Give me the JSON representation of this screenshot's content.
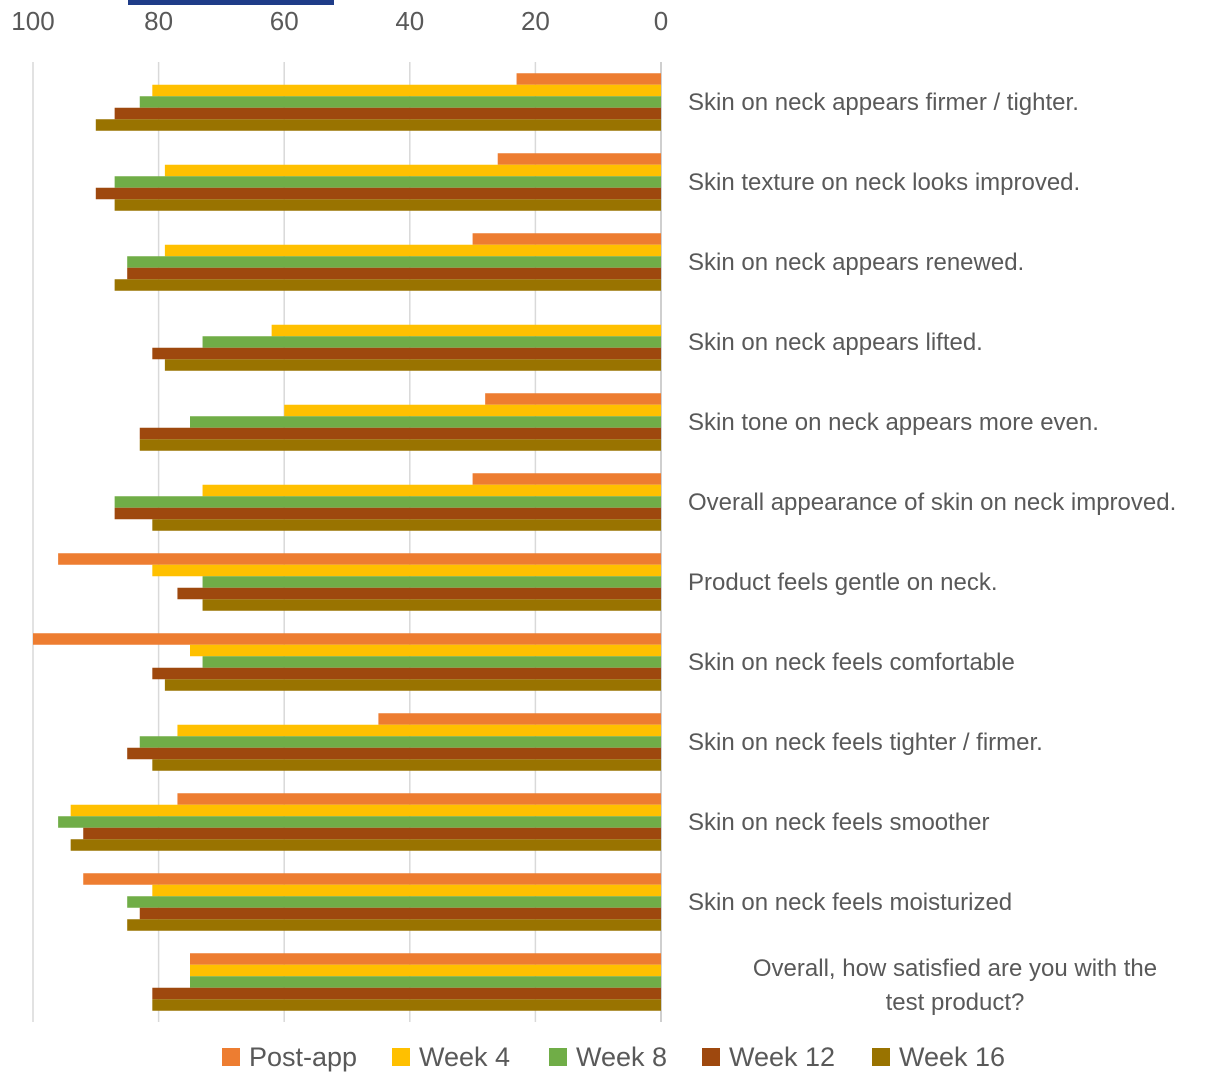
{
  "chart_data": {
    "type": "bar",
    "orientation": "horizontal",
    "x_axis_reversed": true,
    "xlim": [
      0,
      100
    ],
    "xticks": [
      100,
      80,
      60,
      40,
      20,
      0
    ],
    "grid": true,
    "legend_position": "bottom",
    "categories": [
      "Skin on neck appears firmer / tighter.",
      "Skin texture on neck looks improved.",
      "Skin on neck appears renewed.",
      "Skin on neck appears lifted.",
      "Skin tone on neck appears more even.",
      "Overall appearance of skin on neck improved.",
      "Product feels gentle on neck.",
      "Skin on neck feels comfortable",
      "Skin on neck feels tighter / firmer.",
      "Skin on neck feels smoother",
      "Skin on neck feels moisturized",
      "Overall, how satisfied are you with the test product?"
    ],
    "series": [
      {
        "name": "Post-app",
        "color": "#ed7d31",
        "values": [
          23,
          26,
          30,
          0,
          28,
          30,
          96,
          100,
          45,
          77,
          92,
          75
        ]
      },
      {
        "name": "Week 4",
        "color": "#ffc000",
        "values": [
          81,
          79,
          79,
          62,
          60,
          73,
          81,
          75,
          77,
          94,
          81,
          75
        ]
      },
      {
        "name": "Week 8",
        "color": "#70ad47",
        "values": [
          83,
          87,
          85,
          73,
          75,
          87,
          73,
          73,
          83,
          96,
          85,
          75
        ]
      },
      {
        "name": "Week 12",
        "color": "#9e480e",
        "values": [
          87,
          90,
          85,
          81,
          83,
          87,
          77,
          81,
          85,
          92,
          83,
          81
        ]
      },
      {
        "name": "Week 16",
        "color": "#997300",
        "values": [
          90,
          87,
          87,
          79,
          83,
          81,
          73,
          79,
          81,
          94,
          85,
          81
        ]
      }
    ]
  }
}
